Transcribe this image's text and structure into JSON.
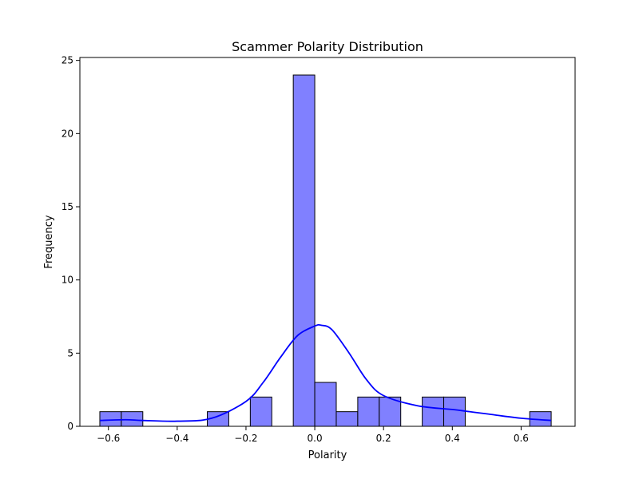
{
  "chart_data": {
    "type": "bar",
    "title": "Scammer Polarity Distribution",
    "xlabel": "Polarity",
    "ylabel": "Frequency",
    "xlim": [
      -0.683,
      0.757
    ],
    "ylim": [
      0,
      25.2
    ],
    "x_ticks": [
      {
        "value": -0.6,
        "label": "−0.6"
      },
      {
        "value": -0.4,
        "label": "−0.4"
      },
      {
        "value": -0.2,
        "label": "−0.2"
      },
      {
        "value": 0.0,
        "label": "0.0"
      },
      {
        "value": 0.2,
        "label": "0.2"
      },
      {
        "value": 0.4,
        "label": "0.4"
      },
      {
        "value": 0.6,
        "label": "0.6"
      }
    ],
    "y_ticks": [
      {
        "value": 0,
        "label": "0"
      },
      {
        "value": 5,
        "label": "5"
      },
      {
        "value": 10,
        "label": "10"
      },
      {
        "value": 15,
        "label": "15"
      },
      {
        "value": 20,
        "label": "20"
      },
      {
        "value": 25,
        "label": "25"
      }
    ],
    "bins": [
      {
        "x0": -0.625,
        "x1": -0.5625,
        "count": 1
      },
      {
        "x0": -0.5625,
        "x1": -0.5,
        "count": 1
      },
      {
        "x0": -0.3125,
        "x1": -0.25,
        "count": 1
      },
      {
        "x0": -0.1875,
        "x1": -0.125,
        "count": 2
      },
      {
        "x0": -0.0625,
        "x1": 0.0,
        "count": 24
      },
      {
        "x0": 0.0,
        "x1": 0.0625,
        "count": 3
      },
      {
        "x0": 0.0625,
        "x1": 0.125,
        "count": 1
      },
      {
        "x0": 0.125,
        "x1": 0.1875,
        "count": 2
      },
      {
        "x0": 0.1875,
        "x1": 0.25,
        "count": 2
      },
      {
        "x0": 0.3125,
        "x1": 0.375,
        "count": 2
      },
      {
        "x0": 0.375,
        "x1": 0.4375,
        "count": 2
      },
      {
        "x0": 0.625,
        "x1": 0.6875,
        "count": 1
      }
    ],
    "kde": {
      "x": [
        -0.625,
        -0.55,
        -0.5,
        -0.4,
        -0.3,
        -0.2,
        -0.15,
        -0.1,
        -0.05,
        0.0,
        0.02,
        0.05,
        0.1,
        0.15,
        0.2,
        0.3,
        0.4,
        0.45,
        0.5,
        0.6,
        0.6875
      ],
      "y": [
        0.4,
        0.45,
        0.4,
        0.35,
        0.55,
        1.7,
        3.0,
        4.7,
        6.2,
        6.85,
        6.9,
        6.6,
        5.0,
        3.2,
        2.1,
        1.4,
        1.15,
        1.0,
        0.85,
        0.55,
        0.4
      ]
    },
    "colors": {
      "bar_fill": "#8080ff",
      "bar_edge": "#000000",
      "kde_line": "#0000ff"
    },
    "grid": false,
    "legend": "none"
  }
}
